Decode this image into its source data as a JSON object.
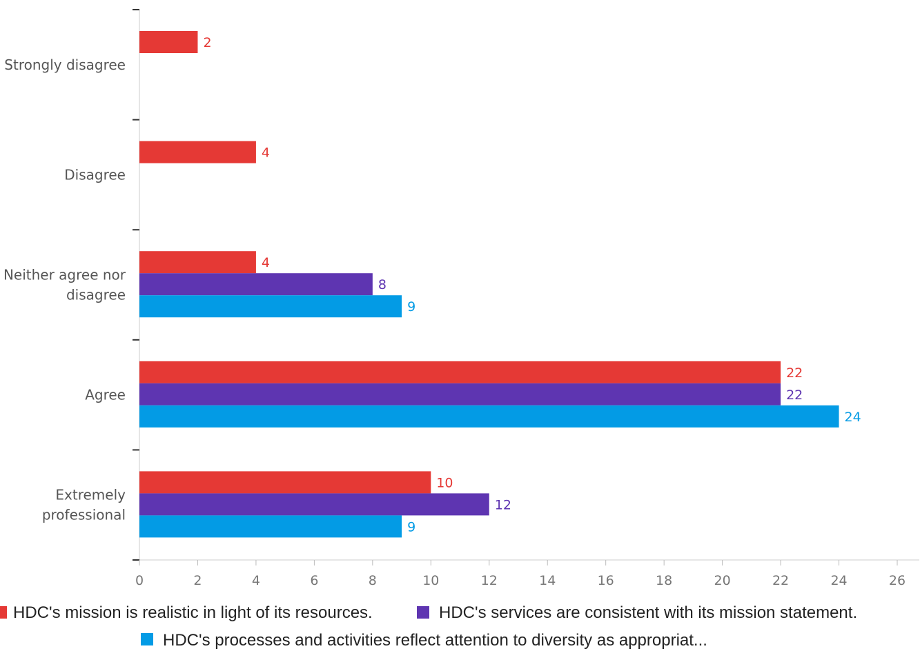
{
  "chart_data": {
    "type": "bar",
    "orientation": "horizontal",
    "categories": [
      "Strongly disagree",
      "Disagree",
      "Neither agree nor disagree",
      "Agree",
      "Extremely professional"
    ],
    "series": [
      {
        "name": "HDC's mission is realistic in light of its resources.",
        "color": "#e53935",
        "values": [
          2,
          4,
          4,
          22,
          10
        ]
      },
      {
        "name": "HDC's services are consistent with its mission statement.",
        "color": "#5e35b1",
        "values": [
          null,
          null,
          8,
          22,
          12
        ]
      },
      {
        "name": "HDC's processes and activities reflect attention to diversity as appropriat...",
        "color": "#039be5",
        "values": [
          null,
          null,
          9,
          24,
          9
        ]
      }
    ],
    "xlim": [
      0,
      26
    ],
    "xticks": [
      0,
      2,
      4,
      6,
      8,
      10,
      12,
      14,
      16,
      18,
      20,
      22,
      24,
      26
    ],
    "grid": false,
    "data_labels": true,
    "legend_position": "bottom",
    "title": "",
    "xlabel": "",
    "ylabel": ""
  }
}
